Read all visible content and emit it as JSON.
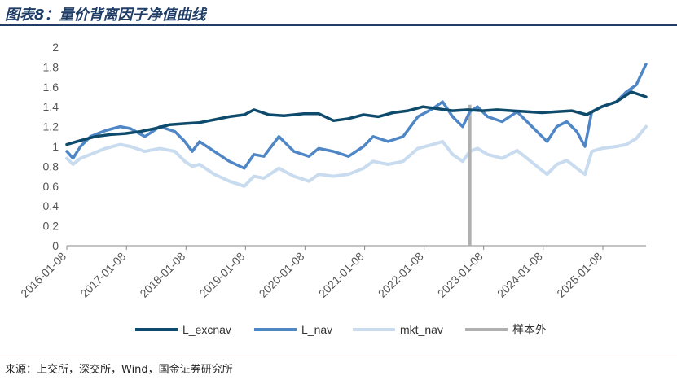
{
  "header": {
    "title": "图表8：量价背离因子净值曲线"
  },
  "footer": {
    "source": "来源：上交所，深交所，Wind，国金证券研究所"
  },
  "chart_data": {
    "type": "line",
    "ylim": [
      0,
      2
    ],
    "yticks": [
      0,
      0.2,
      0.4,
      0.6,
      0.8,
      1,
      1.2,
      1.4,
      1.6,
      1.8,
      2
    ],
    "xlim": [
      "2016-01-08",
      "2025-09-30"
    ],
    "xtick_labels": [
      "2016-01-08",
      "2017-01-08",
      "2018-01-08",
      "2019-01-08",
      "2020-01-08",
      "2021-01-08",
      "2022-01-08",
      "2023-01-08",
      "2024-01-08",
      "2025-01-08"
    ],
    "legend_position": "bottom",
    "series": [
      {
        "name": "L_excnav",
        "color": "#0d4a6b",
        "style": "solid",
        "points": [
          [
            "2016-01-08",
            1.02
          ],
          [
            "2016-04-01",
            1.06
          ],
          [
            "2016-07-01",
            1.1
          ],
          [
            "2016-10-01",
            1.12
          ],
          [
            "2017-01-01",
            1.13
          ],
          [
            "2017-04-01",
            1.15
          ],
          [
            "2017-07-01",
            1.18
          ],
          [
            "2017-10-01",
            1.22
          ],
          [
            "2018-01-01",
            1.23
          ],
          [
            "2018-04-01",
            1.24
          ],
          [
            "2018-07-01",
            1.27
          ],
          [
            "2018-10-01",
            1.3
          ],
          [
            "2019-01-01",
            1.32
          ],
          [
            "2019-03-01",
            1.37
          ],
          [
            "2019-06-01",
            1.32
          ],
          [
            "2019-09-01",
            1.31
          ],
          [
            "2020-01-01",
            1.33
          ],
          [
            "2020-04-01",
            1.33
          ],
          [
            "2020-07-01",
            1.26
          ],
          [
            "2020-10-01",
            1.28
          ],
          [
            "2021-01-01",
            1.32
          ],
          [
            "2021-04-01",
            1.3
          ],
          [
            "2021-07-01",
            1.34
          ],
          [
            "2021-10-01",
            1.36
          ],
          [
            "2022-01-01",
            1.4
          ],
          [
            "2022-04-01",
            1.38
          ],
          [
            "2022-07-01",
            1.36
          ],
          [
            "2022-10-01",
            1.37
          ],
          [
            "2023-01-01",
            1.36
          ],
          [
            "2023-04-01",
            1.37
          ],
          [
            "2023-07-01",
            1.36
          ],
          [
            "2023-10-01",
            1.35
          ],
          [
            "2024-01-01",
            1.34
          ],
          [
            "2024-04-01",
            1.35
          ],
          [
            "2024-07-01",
            1.36
          ],
          [
            "2024-10-01",
            1.32
          ],
          [
            "2025-01-01",
            1.4
          ],
          [
            "2025-04-01",
            1.45
          ],
          [
            "2025-07-01",
            1.55
          ],
          [
            "2025-09-30",
            1.5
          ]
        ]
      },
      {
        "name": "L_nav",
        "color": "#4f86c6",
        "style": "solid",
        "points": [
          [
            "2016-01-08",
            0.95
          ],
          [
            "2016-02-15",
            0.88
          ],
          [
            "2016-04-01",
            1.0
          ],
          [
            "2016-06-01",
            1.1
          ],
          [
            "2016-09-01",
            1.16
          ],
          [
            "2016-12-01",
            1.2
          ],
          [
            "2017-02-01",
            1.18
          ],
          [
            "2017-05-01",
            1.1
          ],
          [
            "2017-08-01",
            1.2
          ],
          [
            "2017-11-01",
            1.15
          ],
          [
            "2018-01-01",
            1.05
          ],
          [
            "2018-02-15",
            0.95
          ],
          [
            "2018-04-01",
            1.05
          ],
          [
            "2018-07-01",
            0.95
          ],
          [
            "2018-10-01",
            0.85
          ],
          [
            "2019-01-01",
            0.78
          ],
          [
            "2019-03-01",
            0.92
          ],
          [
            "2019-05-01",
            0.9
          ],
          [
            "2019-08-01",
            1.1
          ],
          [
            "2019-11-01",
            0.95
          ],
          [
            "2020-02-01",
            0.9
          ],
          [
            "2020-04-01",
            0.98
          ],
          [
            "2020-07-01",
            0.95
          ],
          [
            "2020-10-01",
            0.9
          ],
          [
            "2021-01-01",
            1.0
          ],
          [
            "2021-03-01",
            1.1
          ],
          [
            "2021-06-01",
            1.05
          ],
          [
            "2021-09-01",
            1.1
          ],
          [
            "2021-12-01",
            1.3
          ],
          [
            "2022-03-01",
            1.38
          ],
          [
            "2022-05-01",
            1.45
          ],
          [
            "2022-07-01",
            1.3
          ],
          [
            "2022-09-01",
            1.2
          ],
          [
            "2022-10-15",
            1.35
          ],
          [
            "2022-12-01",
            1.4
          ],
          [
            "2023-02-01",
            1.3
          ],
          [
            "2023-05-01",
            1.25
          ],
          [
            "2023-08-01",
            1.35
          ],
          [
            "2023-10-01",
            1.25
          ],
          [
            "2023-12-01",
            1.15
          ],
          [
            "2024-02-01",
            1.05
          ],
          [
            "2024-04-01",
            1.2
          ],
          [
            "2024-06-01",
            1.25
          ],
          [
            "2024-08-01",
            1.15
          ],
          [
            "2024-09-20",
            1.0
          ],
          [
            "2024-11-01",
            1.35
          ],
          [
            "2025-01-01",
            1.4
          ],
          [
            "2025-04-01",
            1.45
          ],
          [
            "2025-06-01",
            1.55
          ],
          [
            "2025-08-01",
            1.62
          ],
          [
            "2025-09-30",
            1.83
          ]
        ]
      },
      {
        "name": "mkt_nav",
        "color": "#c9dcef",
        "style": "solid",
        "points": [
          [
            "2016-01-08",
            0.88
          ],
          [
            "2016-02-15",
            0.82
          ],
          [
            "2016-04-01",
            0.88
          ],
          [
            "2016-06-01",
            0.92
          ],
          [
            "2016-09-01",
            0.98
          ],
          [
            "2016-12-01",
            1.02
          ],
          [
            "2017-02-01",
            1.0
          ],
          [
            "2017-05-01",
            0.95
          ],
          [
            "2017-08-01",
            0.98
          ],
          [
            "2017-11-01",
            0.95
          ],
          [
            "2018-01-01",
            0.85
          ],
          [
            "2018-02-15",
            0.8
          ],
          [
            "2018-04-01",
            0.82
          ],
          [
            "2018-07-01",
            0.72
          ],
          [
            "2018-10-01",
            0.65
          ],
          [
            "2019-01-01",
            0.6
          ],
          [
            "2019-03-01",
            0.7
          ],
          [
            "2019-05-01",
            0.68
          ],
          [
            "2019-08-01",
            0.78
          ],
          [
            "2019-11-01",
            0.7
          ],
          [
            "2020-02-01",
            0.65
          ],
          [
            "2020-04-01",
            0.72
          ],
          [
            "2020-07-01",
            0.7
          ],
          [
            "2020-10-01",
            0.72
          ],
          [
            "2021-01-01",
            0.78
          ],
          [
            "2021-03-01",
            0.85
          ],
          [
            "2021-06-01",
            0.82
          ],
          [
            "2021-09-01",
            0.85
          ],
          [
            "2021-12-01",
            0.98
          ],
          [
            "2022-03-01",
            1.02
          ],
          [
            "2022-05-01",
            1.05
          ],
          [
            "2022-07-01",
            0.92
          ],
          [
            "2022-09-01",
            0.85
          ],
          [
            "2022-10-15",
            0.95
          ],
          [
            "2022-12-01",
            0.98
          ],
          [
            "2023-02-01",
            0.92
          ],
          [
            "2023-05-01",
            0.88
          ],
          [
            "2023-08-01",
            0.96
          ],
          [
            "2023-10-01",
            0.88
          ],
          [
            "2023-12-01",
            0.8
          ],
          [
            "2024-02-01",
            0.72
          ],
          [
            "2024-04-01",
            0.82
          ],
          [
            "2024-06-01",
            0.86
          ],
          [
            "2024-08-01",
            0.78
          ],
          [
            "2024-09-20",
            0.72
          ],
          [
            "2024-11-01",
            0.95
          ],
          [
            "2025-01-01",
            0.98
          ],
          [
            "2025-04-01",
            1.0
          ],
          [
            "2025-06-01",
            1.02
          ],
          [
            "2025-08-01",
            1.08
          ],
          [
            "2025-09-30",
            1.2
          ]
        ]
      },
      {
        "name": "样本外",
        "color": "#b0b0b0",
        "style": "vertical-marker",
        "points": [
          [
            "2022-10-15",
            0
          ],
          [
            "2022-10-15",
            1.42
          ]
        ]
      }
    ]
  }
}
